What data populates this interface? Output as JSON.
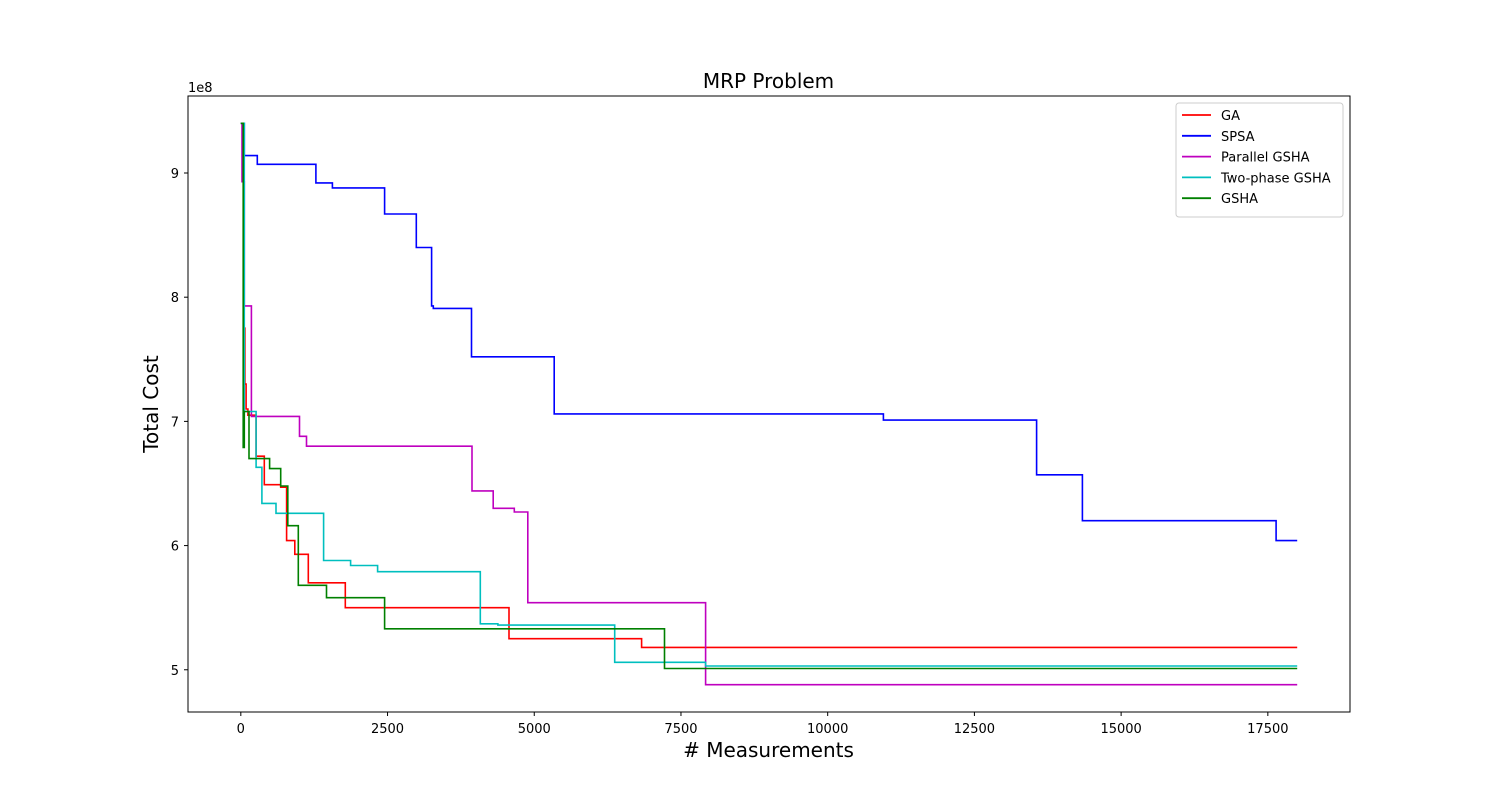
{
  "chart_data": {
    "type": "line",
    "title": "MRP Problem",
    "xlabel": "# Measurements",
    "ylabel": "Total Cost",
    "y_offset_label": "1e8",
    "xlim": [
      -900,
      18900
    ],
    "ylim": [
      4.66,
      9.62
    ],
    "xticks": [
      0,
      2500,
      5000,
      7500,
      10000,
      12500,
      15000,
      17500
    ],
    "xtick_labels": [
      "0",
      "2500",
      "5000",
      "7500",
      "10000",
      "12500",
      "15000",
      "17500"
    ],
    "yticks": [
      5,
      6,
      7,
      8,
      9
    ],
    "ytick_labels": [
      "5",
      "6",
      "7",
      "8",
      "9"
    ],
    "grid": false,
    "legend_position": "top-right",
    "series": [
      {
        "name": "GA",
        "color": "#ff0000",
        "x": [
          0,
          50,
          50,
          70,
          70,
          90,
          90,
          120,
          120,
          260,
          260,
          400,
          400,
          680,
          680,
          780,
          780,
          920,
          920,
          1150,
          1150,
          1780,
          1780,
          4570,
          4570,
          6830,
          6830,
          18000
        ],
        "y": [
          9.4,
          9.4,
          7.75,
          7.75,
          7.3,
          7.3,
          7.1,
          7.1,
          7.05,
          7.05,
          6.72,
          6.72,
          6.49,
          6.49,
          6.47,
          6.47,
          6.04,
          6.04,
          5.93,
          5.93,
          5.7,
          5.7,
          5.5,
          5.5,
          5.25,
          5.25,
          5.18,
          5.18
        ]
      },
      {
        "name": "SPSA",
        "color": "#0000ff",
        "x": [
          0,
          60,
          60,
          280,
          280,
          1280,
          1280,
          1560,
          1560,
          2450,
          2450,
          2990,
          2990,
          3250,
          3250,
          3280,
          3280,
          3930,
          3930,
          5340,
          5340,
          10950,
          10950,
          13560,
          13560,
          14340,
          14340,
          17640,
          17640,
          18000
        ],
        "y": [
          9.4,
          9.4,
          9.14,
          9.14,
          9.07,
          9.07,
          8.92,
          8.92,
          8.88,
          8.88,
          8.67,
          8.67,
          8.4,
          8.4,
          7.93,
          7.93,
          7.91,
          7.91,
          7.52,
          7.52,
          7.06,
          7.06,
          7.01,
          7.01,
          6.57,
          6.57,
          6.2,
          6.2,
          6.04,
          6.04
        ]
      },
      {
        "name": "Parallel GSHA",
        "color": "#bf00bf",
        "x": [
          0,
          20,
          20,
          60,
          60,
          180,
          180,
          1000,
          1000,
          1120,
          1120,
          3940,
          3940,
          4300,
          4300,
          4660,
          4660,
          4890,
          4890,
          7920,
          7920,
          18000
        ],
        "y": [
          9.4,
          9.4,
          8.93,
          8.93,
          7.93,
          7.93,
          7.04,
          7.04,
          6.88,
          6.88,
          6.8,
          6.8,
          6.44,
          6.44,
          6.3,
          6.3,
          6.27,
          6.27,
          5.54,
          5.54,
          4.88,
          4.88
        ]
      },
      {
        "name": "Two-phase GSHA",
        "color": "#00bfbf",
        "x": [
          0,
          60,
          60,
          260,
          260,
          360,
          360,
          600,
          600,
          1410,
          1410,
          1870,
          1870,
          2330,
          2330,
          4080,
          4080,
          4380,
          4380,
          6370,
          6370,
          7920,
          7920,
          18000
        ],
        "y": [
          9.4,
          9.4,
          7.08,
          7.08,
          6.63,
          6.63,
          6.34,
          6.34,
          6.26,
          6.26,
          5.88,
          5.88,
          5.84,
          5.84,
          5.79,
          5.79,
          5.37,
          5.37,
          5.36,
          5.36,
          5.06,
          5.06,
          5.03,
          5.03
        ]
      },
      {
        "name": "GSHA",
        "color": "#008000",
        "x": [
          0,
          40,
          40,
          60,
          60,
          140,
          140,
          490,
          490,
          680,
          680,
          800,
          800,
          980,
          980,
          1460,
          1460,
          2450,
          2450,
          7220,
          7220,
          18000
        ],
        "y": [
          9.4,
          9.4,
          6.79,
          6.79,
          7.08,
          7.08,
          6.7,
          6.7,
          6.62,
          6.62,
          6.48,
          6.48,
          6.16,
          6.16,
          5.68,
          5.68,
          5.58,
          5.58,
          5.33,
          5.33,
          5.01,
          5.01
        ]
      }
    ]
  }
}
